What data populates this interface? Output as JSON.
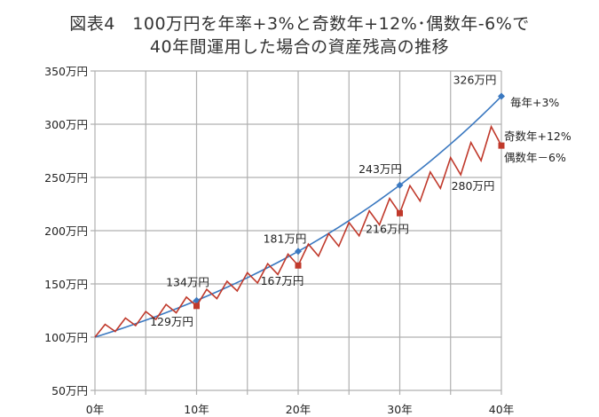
{
  "title_line1": "図表4　100万円を年率+3%と奇数年+12%･偶数年-6%で",
  "title_line2": "40年間運用した場合の資産残高の推移",
  "chart_data": {
    "type": "line",
    "x": [
      0,
      1,
      2,
      3,
      4,
      5,
      6,
      7,
      8,
      9,
      10,
      11,
      12,
      13,
      14,
      15,
      16,
      17,
      18,
      19,
      20,
      21,
      22,
      23,
      24,
      25,
      26,
      27,
      28,
      29,
      30,
      31,
      32,
      33,
      34,
      35,
      36,
      37,
      38,
      39,
      40
    ],
    "xlim": [
      0,
      40
    ],
    "ylim": [
      50,
      350
    ],
    "x_ticks": [
      0,
      10,
      20,
      30,
      40
    ],
    "x_tick_labels": [
      "0年",
      "10年",
      "20年",
      "30年",
      "40年"
    ],
    "y_ticks": [
      50,
      100,
      150,
      200,
      250,
      300,
      350
    ],
    "y_tick_labels": [
      "50万円",
      "100万円",
      "150万円",
      "200万円",
      "250万円",
      "300万円",
      "350万円"
    ],
    "grid": true,
    "series": [
      {
        "name": "毎年+3%",
        "color": "#3a78c0",
        "marker": "diamond",
        "values": [
          100,
          103.0,
          106.1,
          109.3,
          112.6,
          115.9,
          119.4,
          123.0,
          126.7,
          130.5,
          134.4,
          138.4,
          142.6,
          146.9,
          151.3,
          155.8,
          160.5,
          165.3,
          170.2,
          175.4,
          180.6,
          186.0,
          191.6,
          197.4,
          203.3,
          209.4,
          215.7,
          222.1,
          228.8,
          235.7,
          242.7,
          250.0,
          257.5,
          265.2,
          273.2,
          281.4,
          289.8,
          298.5,
          307.5,
          316.7,
          326.2
        ],
        "data_labels": [
          {
            "x": 10,
            "text": "134万円"
          },
          {
            "x": 20,
            "text": "181万円"
          },
          {
            "x": 30,
            "text": "243万円"
          },
          {
            "x": 40,
            "text": "326万円"
          }
        ]
      },
      {
        "name_line1": "奇数年+12%",
        "name_line2": "偶数年－6%",
        "color": "#c0392b",
        "marker": "square",
        "values": [
          100,
          112.0,
          105.3,
          117.9,
          110.8,
          124.1,
          116.7,
          130.7,
          122.9,
          137.6,
          129.3,
          144.9,
          136.2,
          152.5,
          143.4,
          160.6,
          150.9,
          169.0,
          158.9,
          178.0,
          167.3,
          187.4,
          176.1,
          197.3,
          185.4,
          207.7,
          195.2,
          218.6,
          205.5,
          230.2,
          216.4,
          242.3,
          227.8,
          255.1,
          239.8,
          268.6,
          252.5,
          282.8,
          265.8,
          297.7,
          279.9
        ],
        "data_labels": [
          {
            "x": 10,
            "text": "129万円"
          },
          {
            "x": 20,
            "text": "167万円"
          },
          {
            "x": 30,
            "text": "216万円"
          },
          {
            "x": 40,
            "text": "280万円"
          }
        ]
      }
    ]
  }
}
